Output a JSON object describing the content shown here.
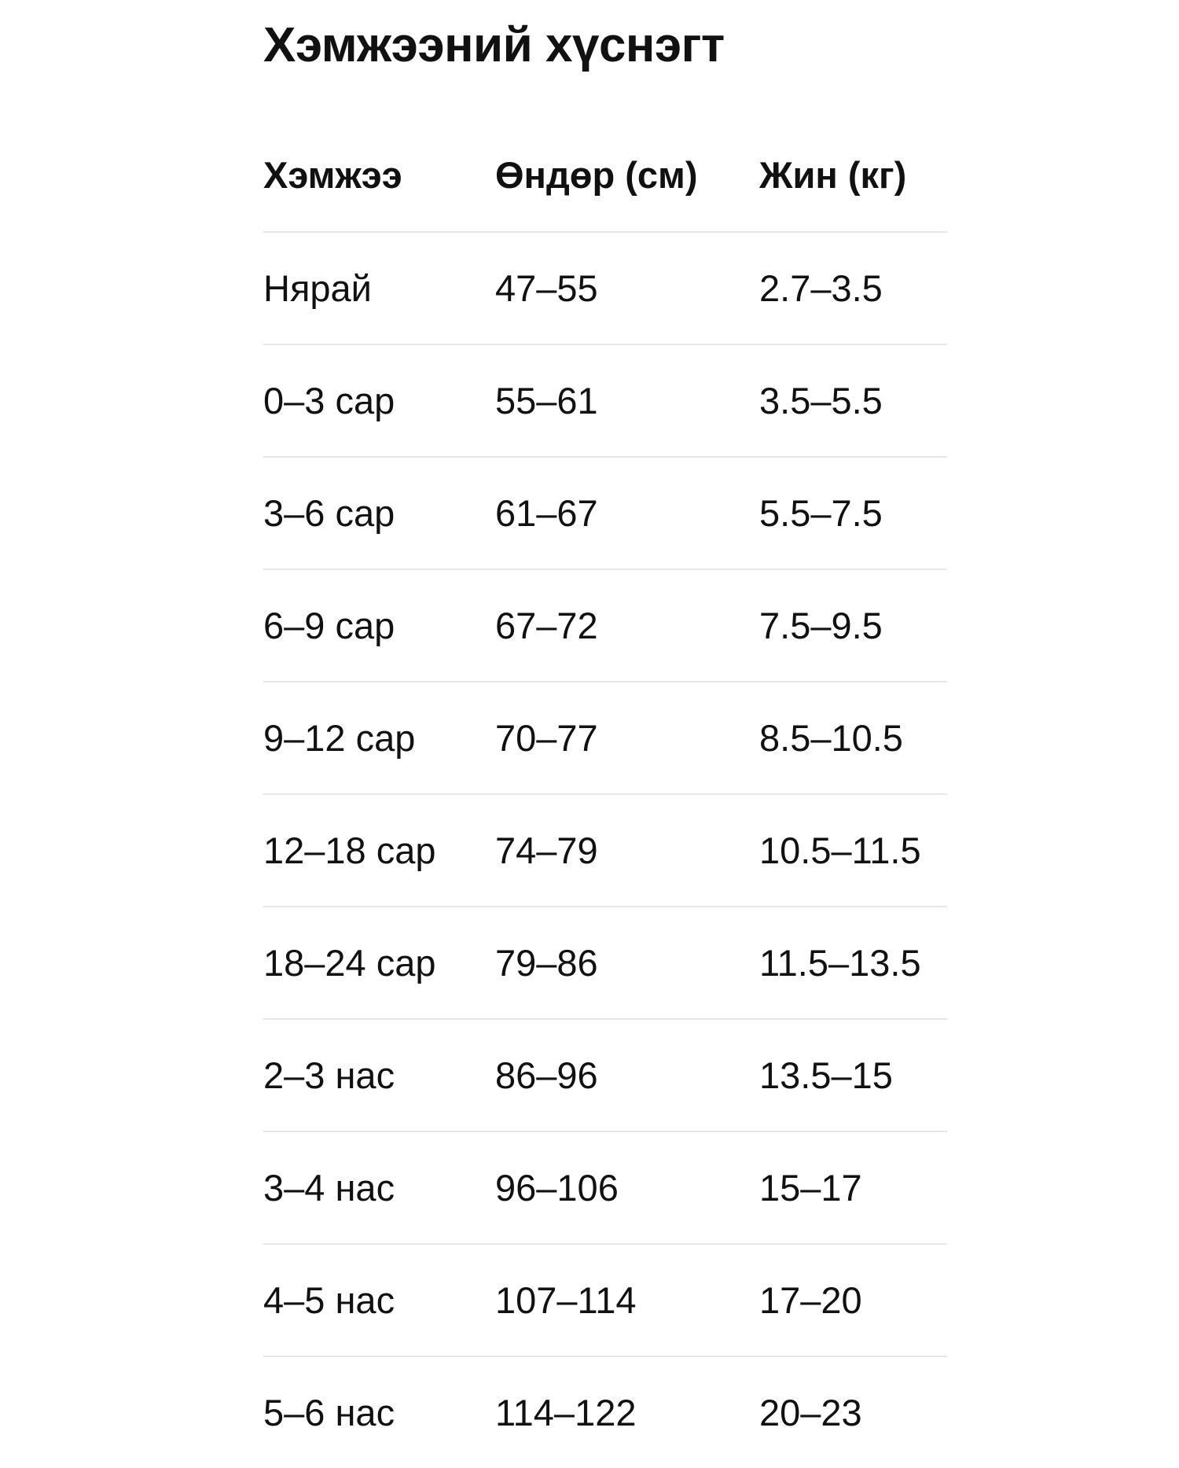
{
  "title": "Хэмжээний хүснэгт",
  "table": {
    "headers": [
      "Хэмжээ",
      "Өндөр (см)",
      "Жин (кг)"
    ],
    "rows": [
      [
        "Нярай",
        "47–55",
        "2.7–3.5"
      ],
      [
        "0–3 сар",
        "55–61",
        "3.5–5.5"
      ],
      [
        "3–6 сар",
        "61–67",
        "5.5–7.5"
      ],
      [
        "6–9 сар",
        "67–72",
        "7.5–9.5"
      ],
      [
        "9–12 сар",
        "70–77",
        "8.5–10.5"
      ],
      [
        "12–18 сар",
        "74–79",
        "10.5–11.5"
      ],
      [
        "18–24 сар",
        "79–86",
        "11.5–13.5"
      ],
      [
        "2–3 нас",
        "86–96",
        "13.5–15"
      ],
      [
        "3–4 нас",
        "96–106",
        "15–17"
      ],
      [
        "4–5 нас",
        "107–114",
        "17–20"
      ],
      [
        "5–6 нас",
        "114–122",
        "20–23"
      ]
    ]
  }
}
